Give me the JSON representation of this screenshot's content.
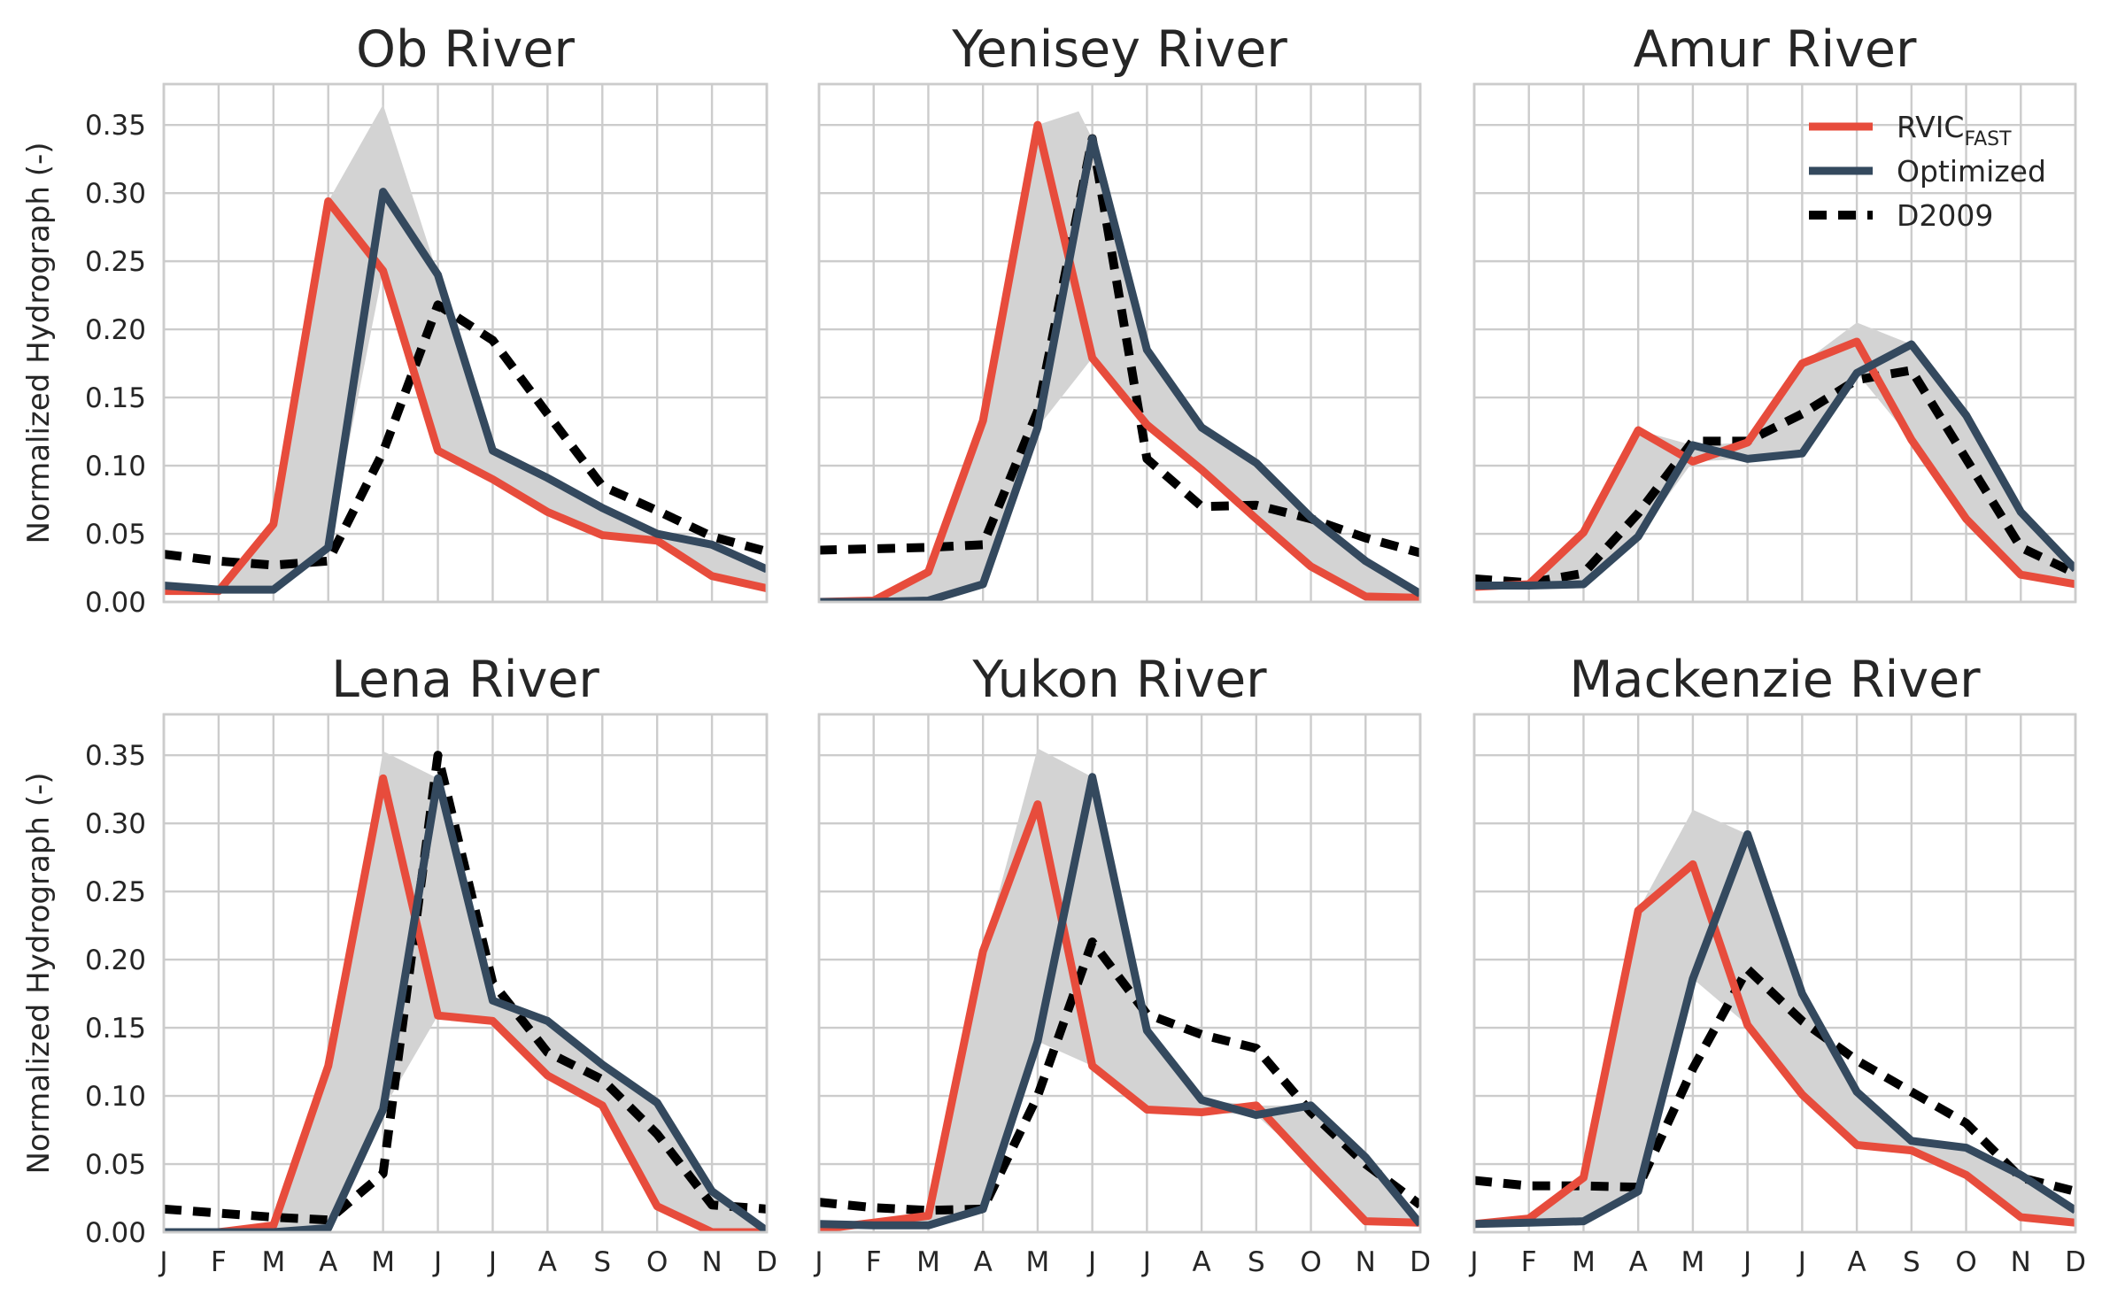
{
  "figure": {
    "ylabel": "Normalized Hydrograph (-)",
    "xtick_labels": [
      "J",
      "F",
      "M",
      "A",
      "M",
      "J",
      "J",
      "A",
      "S",
      "O",
      "N",
      "D"
    ],
    "ytick_labels": [
      "0.00",
      "0.05",
      "0.10",
      "0.15",
      "0.20",
      "0.25",
      "0.30",
      "0.35"
    ],
    "legend": {
      "rvic_main": "RVIC",
      "rvic_sub": "FAST",
      "optimized": "Optimized",
      "d2009": "D2009"
    }
  },
  "colors": {
    "rvic": "#e74c3c",
    "optimized": "#34495e",
    "d2009": "#000000",
    "envelope": "#d3d3d3",
    "grid": "#cccccc"
  },
  "chart_data": [
    {
      "type": "line",
      "title": "Ob River",
      "categories": [
        "J",
        "F",
        "M",
        "A",
        "M",
        "J",
        "J",
        "A",
        "S",
        "O",
        "N",
        "D"
      ],
      "ylim": [
        0,
        0.38
      ],
      "grid": true,
      "series": [
        {
          "name": "RVIC FAST",
          "values": [
            0.008,
            0.008,
            0.057,
            0.294,
            0.243,
            0.111,
            0.09,
            0.066,
            0.049,
            0.045,
            0.019,
            0.01
          ]
        },
        {
          "name": "Optimized",
          "values": [
            0.012,
            0.009,
            0.009,
            0.04,
            0.301,
            0.24,
            0.111,
            0.091,
            0.069,
            0.05,
            0.042,
            0.024
          ]
        },
        {
          "name": "D2009",
          "values": [
            0.035,
            0.03,
            0.027,
            0.03,
            0.11,
            0.218,
            0.192,
            0.138,
            0.085,
            0.067,
            0.048,
            0.037
          ]
        }
      ],
      "envelope_peak": {
        "x": 4,
        "y": 0.365
      }
    },
    {
      "type": "line",
      "title": "Yenisey River",
      "categories": [
        "J",
        "F",
        "M",
        "A",
        "M",
        "J",
        "J",
        "A",
        "S",
        "O",
        "N",
        "D"
      ],
      "ylim": [
        0,
        0.38
      ],
      "grid": true,
      "series": [
        {
          "name": "RVIC FAST",
          "values": [
            0.0,
            0.001,
            0.022,
            0.133,
            0.35,
            0.179,
            0.13,
            0.097,
            0.061,
            0.026,
            0.004,
            0.003
          ]
        },
        {
          "name": "Optimized",
          "values": [
            0.0,
            0.0,
            0.001,
            0.013,
            0.128,
            0.34,
            0.185,
            0.128,
            0.102,
            0.062,
            0.03,
            0.006
          ]
        },
        {
          "name": "D2009",
          "values": [
            0.038,
            0.039,
            0.04,
            0.042,
            0.14,
            0.34,
            0.105,
            0.07,
            0.071,
            0.061,
            0.047,
            0.036
          ]
        }
      ],
      "envelope_peak": {
        "x": 4.75,
        "y": 0.36
      }
    },
    {
      "type": "line",
      "title": "Amur River",
      "categories": [
        "J",
        "F",
        "M",
        "A",
        "M",
        "J",
        "J",
        "A",
        "S",
        "O",
        "N",
        "D"
      ],
      "ylim": [
        0,
        0.38
      ],
      "grid": true,
      "series": [
        {
          "name": "RVIC FAST",
          "values": [
            0.011,
            0.013,
            0.051,
            0.126,
            0.103,
            0.117,
            0.175,
            0.191,
            0.119,
            0.061,
            0.02,
            0.013
          ]
        },
        {
          "name": "Optimized",
          "values": [
            0.012,
            0.012,
            0.013,
            0.048,
            0.115,
            0.105,
            0.109,
            0.168,
            0.189,
            0.137,
            0.066,
            0.024
          ]
        },
        {
          "name": "D2009",
          "values": [
            0.017,
            0.014,
            0.021,
            0.065,
            0.118,
            0.118,
            0.138,
            0.163,
            0.17,
            0.105,
            0.04,
            0.021
          ]
        }
      ],
      "envelope_peak": {
        "x": 7,
        "y": 0.205
      }
    },
    {
      "type": "line",
      "title": "Lena River",
      "categories": [
        "J",
        "F",
        "M",
        "A",
        "M",
        "J",
        "J",
        "A",
        "S",
        "O",
        "N",
        "D"
      ],
      "ylim": [
        0,
        0.38
      ],
      "grid": true,
      "series": [
        {
          "name": "RVIC FAST",
          "values": [
            0.0,
            0.0,
            0.005,
            0.122,
            0.333,
            0.159,
            0.155,
            0.115,
            0.093,
            0.019,
            0.0,
            0.0
          ]
        },
        {
          "name": "Optimized",
          "values": [
            0.0,
            0.0,
            0.0,
            0.003,
            0.09,
            0.333,
            0.17,
            0.155,
            0.123,
            0.095,
            0.03,
            0.001
          ]
        },
        {
          "name": "D2009",
          "values": [
            0.017,
            0.014,
            0.011,
            0.009,
            0.043,
            0.35,
            0.183,
            0.132,
            0.112,
            0.072,
            0.02,
            0.017
          ]
        }
      ],
      "envelope_peak": {
        "x": 4,
        "y": 0.353
      }
    },
    {
      "type": "line",
      "title": "Yukon River",
      "categories": [
        "J",
        "F",
        "M",
        "A",
        "M",
        "J",
        "J",
        "A",
        "S",
        "O",
        "N",
        "D"
      ],
      "ylim": [
        0,
        0.38
      ],
      "grid": true,
      "series": [
        {
          "name": "RVIC FAST",
          "values": [
            0.002,
            0.007,
            0.012,
            0.206,
            0.314,
            0.122,
            0.09,
            0.088,
            0.093,
            0.05,
            0.008,
            0.007
          ]
        },
        {
          "name": "Optimized",
          "values": [
            0.006,
            0.005,
            0.005,
            0.017,
            0.14,
            0.334,
            0.148,
            0.097,
            0.086,
            0.093,
            0.055,
            0.006
          ]
        },
        {
          "name": "D2009",
          "values": [
            0.022,
            0.018,
            0.016,
            0.017,
            0.1,
            0.213,
            0.16,
            0.145,
            0.135,
            0.088,
            0.05,
            0.02
          ]
        }
      ],
      "envelope_peak": {
        "x": 4,
        "y": 0.355
      }
    },
    {
      "type": "line",
      "title": "Mackenzie River",
      "categories": [
        "J",
        "F",
        "M",
        "A",
        "M",
        "J",
        "J",
        "A",
        "S",
        "O",
        "N",
        "D"
      ],
      "ylim": [
        0,
        0.38
      ],
      "grid": true,
      "series": [
        {
          "name": "RVIC FAST",
          "values": [
            0.006,
            0.01,
            0.04,
            0.236,
            0.27,
            0.152,
            0.101,
            0.064,
            0.06,
            0.042,
            0.011,
            0.007
          ]
        },
        {
          "name": "Optimized",
          "values": [
            0.006,
            0.007,
            0.008,
            0.03,
            0.186,
            0.292,
            0.175,
            0.103,
            0.067,
            0.062,
            0.042,
            0.016
          ]
        },
        {
          "name": "D2009",
          "values": [
            0.038,
            0.034,
            0.034,
            0.033,
            0.12,
            0.193,
            0.155,
            0.126,
            0.103,
            0.08,
            0.04,
            0.03
          ]
        }
      ],
      "envelope_peak": {
        "x": 4,
        "y": 0.31
      }
    }
  ]
}
